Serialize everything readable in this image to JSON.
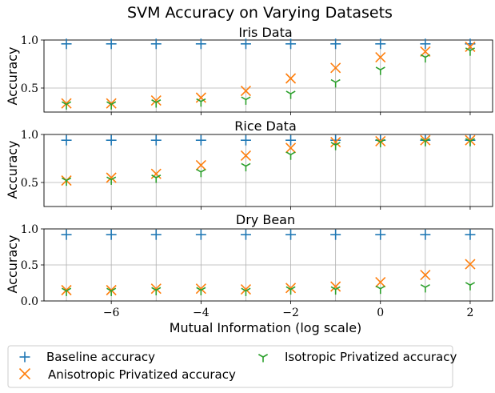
{
  "figure": {
    "title": "SVM Accuracy on Varying Datasets",
    "xlabel": "Mutual Information (log scale)"
  },
  "legend": [
    {
      "label": "Baseline accuracy",
      "marker": "plus",
      "color": "#1f77b4"
    },
    {
      "label": "Anisotropic Privatized accuracy",
      "marker": "x",
      "color": "#ff7f0e"
    },
    {
      "label": "Isotropic Privatized accuracy",
      "marker": "tri",
      "color": "#2ca02c"
    }
  ],
  "chart_data": [
    {
      "type": "scatter",
      "title": "Iris Data",
      "xlabel": "",
      "ylabel": "Accuracy",
      "xlim": [
        -7.5,
        2.5
      ],
      "ylim": [
        0.25,
        1.0
      ],
      "xticks": [
        -6,
        -4,
        -2,
        0,
        2
      ],
      "xgrid": [
        -7,
        -6,
        -5,
        -4,
        -3,
        -2,
        -1,
        0,
        1,
        2
      ],
      "yticks": [
        0.5,
        1.0
      ],
      "ytick_labels": [
        "0.5",
        "1.0"
      ],
      "x": [
        -7,
        -6,
        -5,
        -4,
        -3,
        -2,
        -1,
        0,
        1,
        2
      ],
      "series": [
        {
          "name": "Baseline accuracy",
          "values": [
            0.96,
            0.96,
            0.96,
            0.96,
            0.96,
            0.96,
            0.96,
            0.96,
            0.96,
            0.96
          ]
        },
        {
          "name": "Anisotropic Privatized accuracy",
          "values": [
            0.34,
            0.34,
            0.37,
            0.4,
            0.47,
            0.6,
            0.71,
            0.82,
            0.88,
            0.93
          ]
        },
        {
          "name": "Isotropic Privatized accuracy",
          "values": [
            0.33,
            0.33,
            0.35,
            0.36,
            0.38,
            0.44,
            0.56,
            0.69,
            0.82,
            0.89
          ]
        }
      ]
    },
    {
      "type": "scatter",
      "title": "Rice Data",
      "xlabel": "",
      "ylabel": "Accuracy",
      "xlim": [
        -7.5,
        2.5
      ],
      "ylim": [
        0.25,
        1.0
      ],
      "xticks": [
        -6,
        -4,
        -2,
        0,
        2
      ],
      "xgrid": [
        -7,
        -6,
        -5,
        -4,
        -3,
        -2,
        -1,
        0,
        1,
        2
      ],
      "yticks": [
        0.5,
        1.0
      ],
      "ytick_labels": [
        "0.5",
        "1.0"
      ],
      "x": [
        -7,
        -6,
        -5,
        -4,
        -3,
        -2,
        -1,
        0,
        1,
        2
      ],
      "series": [
        {
          "name": "Baseline accuracy",
          "values": [
            0.94,
            0.94,
            0.94,
            0.94,
            0.94,
            0.94,
            0.94,
            0.94,
            0.94,
            0.94
          ]
        },
        {
          "name": "Anisotropic Privatized accuracy",
          "values": [
            0.52,
            0.55,
            0.59,
            0.68,
            0.78,
            0.86,
            0.92,
            0.93,
            0.94,
            0.94
          ]
        },
        {
          "name": "Isotropic Privatized accuracy",
          "values": [
            0.52,
            0.53,
            0.55,
            0.61,
            0.67,
            0.79,
            0.89,
            0.92,
            0.93,
            0.93
          ]
        }
      ]
    },
    {
      "type": "scatter",
      "title": "Dry Bean",
      "xlabel": "Mutual Information (log scale)",
      "ylabel": "Accuracy",
      "xlim": [
        -7.5,
        2.5
      ],
      "ylim": [
        0.0,
        1.0
      ],
      "xticks": [
        -6,
        -4,
        -2,
        0,
        2
      ],
      "xgrid": [
        -7,
        -6,
        -5,
        -4,
        -3,
        -2,
        -1,
        0,
        1,
        2
      ],
      "yticks": [
        0.0,
        0.5,
        1.0
      ],
      "ytick_labels": [
        "0.0",
        "0.5",
        "1.0"
      ],
      "x": [
        -7,
        -6,
        -5,
        -4,
        -3,
        -2,
        -1,
        0,
        1,
        2
      ],
      "series": [
        {
          "name": "Baseline accuracy",
          "values": [
            0.92,
            0.92,
            0.92,
            0.92,
            0.92,
            0.92,
            0.92,
            0.92,
            0.92,
            0.92
          ]
        },
        {
          "name": "Anisotropic Privatized accuracy",
          "values": [
            0.15,
            0.15,
            0.17,
            0.17,
            0.16,
            0.18,
            0.2,
            0.26,
            0.36,
            0.51
          ]
        },
        {
          "name": "Isotropic Privatized accuracy",
          "values": [
            0.14,
            0.14,
            0.15,
            0.15,
            0.14,
            0.16,
            0.16,
            0.17,
            0.19,
            0.22
          ]
        }
      ]
    }
  ]
}
